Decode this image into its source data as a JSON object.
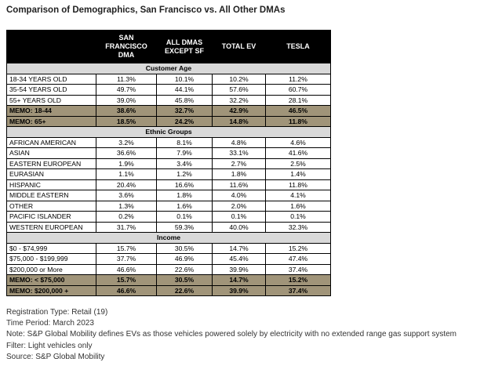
{
  "title": "Comparison of Demographics, San Francisco vs. All Other DMAs",
  "table": {
    "headers": [
      "SAN FRANCISCO DMA",
      "ALL DMAS EXCEPT SF",
      "TOTAL EV",
      "TESLA"
    ],
    "sections": [
      {
        "title": "Customer Age",
        "rows": [
          {
            "label": "18-34 YEARS OLD",
            "values": [
              "11.3%",
              "10.1%",
              "10.2%",
              "11.2%"
            ]
          },
          {
            "label": "35-54 YEARS OLD",
            "values": [
              "49.7%",
              "44.1%",
              "57.6%",
              "60.7%"
            ]
          },
          {
            "label": "55+ YEARS OLD",
            "values": [
              "39.0%",
              "45.8%",
              "32.2%",
              "28.1%"
            ]
          },
          {
            "label": "MEMO: 18-44",
            "values": [
              "38.6%",
              "32.7%",
              "42.9%",
              "46.5%"
            ],
            "style": "memo"
          },
          {
            "label": "MEMO: 65+",
            "values": [
              "18.5%",
              "24.2%",
              "14.8%",
              "11.8%"
            ],
            "style": "memo"
          }
        ]
      },
      {
        "title": "Ethnic Groups",
        "rows": [
          {
            "label": "AFRICAN AMERICAN",
            "values": [
              "3.2%",
              "8.1%",
              "4.8%",
              "4.6%"
            ]
          },
          {
            "label": "ASIAN",
            "values": [
              "36.6%",
              "7.9%",
              "33.1%",
              "41.6%"
            ]
          },
          {
            "label": "EASTERN EUROPEAN",
            "values": [
              "1.9%",
              "3.4%",
              "2.7%",
              "2.5%"
            ]
          },
          {
            "label": "EURASIAN",
            "values": [
              "1.1%",
              "1.2%",
              "1.8%",
              "1.4%"
            ]
          },
          {
            "label": "HISPANIC",
            "values": [
              "20.4%",
              "16.6%",
              "11.6%",
              "11.8%"
            ]
          },
          {
            "label": "MIDDLE EASTERN",
            "values": [
              "3.6%",
              "1.8%",
              "4.0%",
              "4.1%"
            ]
          },
          {
            "label": "OTHER",
            "values": [
              "1.3%",
              "1.6%",
              "2.0%",
              "1.6%"
            ]
          },
          {
            "label": "PACIFIC ISLANDER",
            "values": [
              "0.2%",
              "0.1%",
              "0.1%",
              "0.1%"
            ]
          },
          {
            "label": "WESTERN EUROPEAN",
            "values": [
              "31.7%",
              "59.3%",
              "40.0%",
              "32.3%"
            ]
          }
        ]
      },
      {
        "title": "Income",
        "rows": [
          {
            "label": "$0 - $74,999",
            "values": [
              "15.7%",
              "30.5%",
              "14.7%",
              "15.2%"
            ]
          },
          {
            "label": "$75,000 - $199,999",
            "values": [
              "37.7%",
              "46.9%",
              "45.4%",
              "47.4%"
            ]
          },
          {
            "label": "$200,000 or More",
            "values": [
              "46.6%",
              "22.6%",
              "39.9%",
              "37.4%"
            ]
          },
          {
            "label": "MEMO: < $75,000",
            "values": [
              "15.7%",
              "30.5%",
              "14.7%",
              "15.2%"
            ],
            "style": "memo"
          },
          {
            "label": "MEMO: $200,000 +",
            "values": [
              "46.6%",
              "22.6%",
              "39.9%",
              "37.4%"
            ],
            "style": "memo"
          }
        ]
      }
    ]
  },
  "notes": [
    "Registration Type: Retail (19)",
    "Time Period: March 2023",
    "Note: S&P Global Mobility defines EVs as those vehicles powered solely by electricity with no extended range gas support system",
    "Filter: Light vehicles only",
    "Source: S&P Global Mobility"
  ]
}
